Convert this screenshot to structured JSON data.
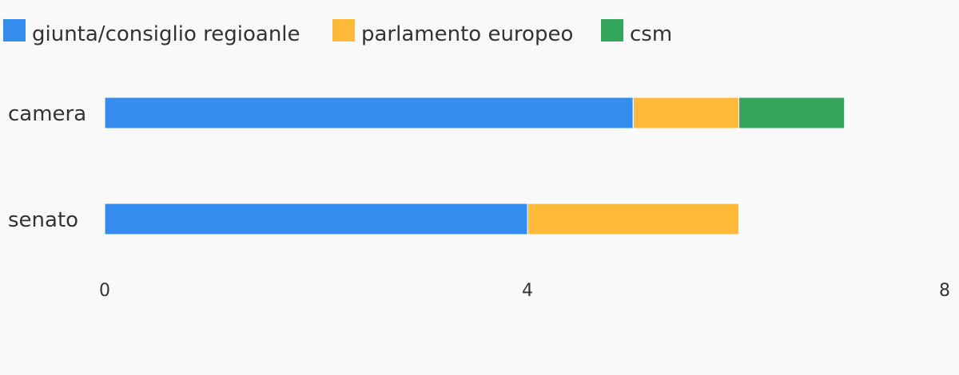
{
  "chart_data": {
    "type": "bar",
    "orientation": "horizontal",
    "stacked": true,
    "categories": [
      "camera",
      "senato"
    ],
    "series": [
      {
        "name": "giunta/consiglio regioanle",
        "color": "#338def",
        "values": [
          5,
          4
        ]
      },
      {
        "name": "parlamento europeo",
        "color": "#ffb938",
        "values": [
          1,
          2
        ]
      },
      {
        "name": "csm",
        "color": "#34a75c",
        "values": [
          1,
          0
        ]
      }
    ],
    "xlim": [
      0,
      8
    ],
    "x_ticks": [
      "0",
      "4",
      "8"
    ],
    "legend_position": "top-left",
    "grid": false
  }
}
